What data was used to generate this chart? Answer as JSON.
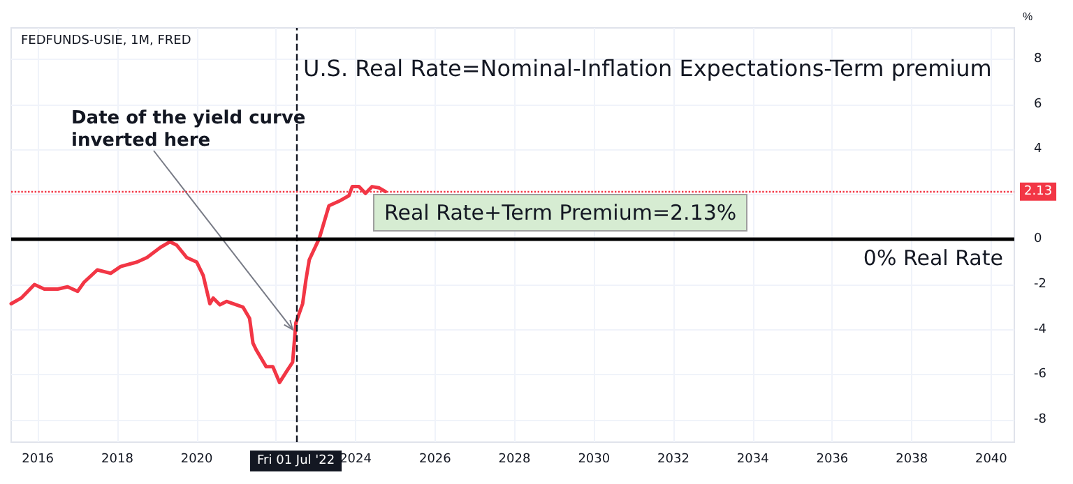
{
  "chart_data": {
    "type": "line",
    "title": "U.S. Real Rate=Nominal-Inflation Expectations-Term premium",
    "subtitle": "FEDFUNDS-USIE, 1M, FRED",
    "ylabel": "%",
    "x": [
      "2015-05",
      "2015-08",
      "2015-12",
      "2016-03",
      "2016-07",
      "2016-10",
      "2017-01",
      "2017-03",
      "2017-07",
      "2017-11",
      "2018-02",
      "2018-07",
      "2018-10",
      "2019-02",
      "2019-05",
      "2019-07",
      "2019-10",
      "2020-01",
      "2020-03",
      "2020-05",
      "2020-06",
      "2020-08",
      "2020-10",
      "2021-03",
      "2021-05",
      "2021-06",
      "2021-07",
      "2021-10",
      "2021-12",
      "2022-02",
      "2022-04",
      "2022-06",
      "2022-07",
      "2022-09",
      "2022-10",
      "2022-11",
      "2023-02",
      "2023-03",
      "2023-05",
      "2023-08",
      "2023-11",
      "2023-12",
      "2024-02",
      "2024-04",
      "2024-06",
      "2024-08",
      "2024-10"
    ],
    "series": [
      {
        "color": "#f23645",
        "values": [
          -2.85,
          -2.6,
          -2.0,
          -2.2,
          -2.2,
          -2.1,
          -2.3,
          -1.9,
          -1.35,
          -1.5,
          -1.2,
          -1.0,
          -0.8,
          -0.35,
          -0.1,
          -0.25,
          -0.8,
          -1.0,
          -1.6,
          -2.85,
          -2.6,
          -2.9,
          -2.75,
          -3.0,
          -3.5,
          -4.6,
          -4.9,
          -5.65,
          -5.65,
          -6.35,
          -5.9,
          -5.45,
          -3.7,
          -2.85,
          -1.8,
          -0.9,
          0.05,
          0.5,
          1.5,
          1.7,
          1.95,
          2.35,
          2.35,
          2.05,
          2.35,
          2.3,
          2.13
        ]
      }
    ],
    "xlim": [
      "2015-05",
      "2040-08"
    ],
    "xticks": [
      "2016",
      "2018",
      "2020",
      {
        "value": "2022",
        "label": null
      },
      "2024",
      "2026",
      "2028",
      "2030",
      "2032",
      "2034",
      "2036",
      "2038",
      "2040"
    ],
    "ylim": [
      -9,
      9.4
    ],
    "yticks": [
      -8,
      -6,
      -4,
      -2,
      0,
      {
        "value": 2,
        "label": null
      },
      4,
      6,
      8
    ],
    "ref_lines": [
      {
        "axis": "x",
        "value": "2022-07",
        "label": "Fri 01 Jul '22",
        "color": "#131722",
        "line_style": "dashed"
      },
      {
        "axis": "y",
        "value": 0,
        "label": "0% Real Rate",
        "color": "#000000",
        "line_style": "solid"
      },
      {
        "axis": "y",
        "value": 2.13,
        "label": "2.13",
        "color": "#f23645",
        "line_style": "dotted"
      }
    ],
    "annotations": [
      {
        "text": "Date of the yield curve inverted here",
        "x": "2022-06",
        "y": -4
      },
      "Real Rate+Term Premium=2.13%"
    ],
    "grid": true,
    "marker": "none",
    "line_style": "solid"
  }
}
